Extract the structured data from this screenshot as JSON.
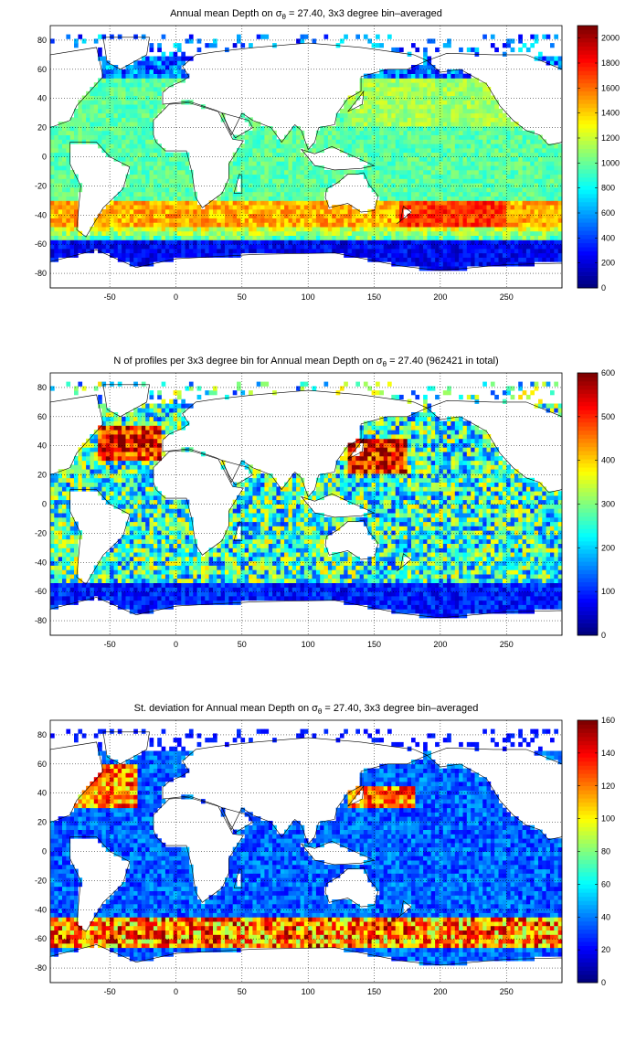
{
  "panels": [
    {
      "title_pre": "Annual mean Depth on ",
      "title_sym": "σ",
      "title_sub": "θ",
      "title_post": " = 27.40, 3x3 degree bin–averaged",
      "cmin": 0,
      "cmax": 2100,
      "cticks": [
        "0",
        "200",
        "400",
        "600",
        "800",
        "1000",
        "1200",
        "1400",
        "1600",
        "1800",
        "2000"
      ],
      "ctick_values": [
        0,
        200,
        400,
        600,
        800,
        1000,
        1200,
        1400,
        1600,
        1800,
        2000
      ],
      "field": "mean_depth"
    },
    {
      "title_pre": "N of profiles per 3x3 degree bin for Annual mean Depth on ",
      "title_sym": "σ",
      "title_sub": "θ",
      "title_post": " = 27.40 (962421 in total)",
      "cmin": 0,
      "cmax": 600,
      "cticks": [
        "0",
        "100",
        "200",
        "300",
        "400",
        "500",
        "600"
      ],
      "ctick_values": [
        0,
        100,
        200,
        300,
        400,
        500,
        600
      ],
      "field": "n_profiles"
    },
    {
      "title_pre": "St. deviation for Annual mean Depth on ",
      "title_sym": "σ",
      "title_sub": "θ",
      "title_post": " = 27.40, 3x3 degree bin–averaged",
      "cmin": 0,
      "cmax": 160,
      "cticks": [
        "0",
        "20",
        "40",
        "60",
        "80",
        "100",
        "120",
        "140",
        "160"
      ],
      "ctick_values": [
        0,
        20,
        40,
        60,
        80,
        100,
        120,
        140,
        160
      ],
      "field": "std_depth"
    }
  ],
  "axes": {
    "xlim": [
      -95,
      292
    ],
    "ylim": [
      -90,
      90
    ],
    "xticks": [
      "-50",
      "0",
      "50",
      "100",
      "150",
      "200",
      "250"
    ],
    "xtick_values": [
      -50,
      0,
      50,
      100,
      150,
      200,
      250
    ],
    "yticks": [
      "80",
      "60",
      "40",
      "20",
      "0",
      "-20",
      "-40",
      "-60",
      "-80"
    ],
    "ytick_values": [
      80,
      60,
      40,
      20,
      0,
      -20,
      -40,
      -60,
      -80
    ],
    "grid": "dotted"
  },
  "colormap": "jet"
}
